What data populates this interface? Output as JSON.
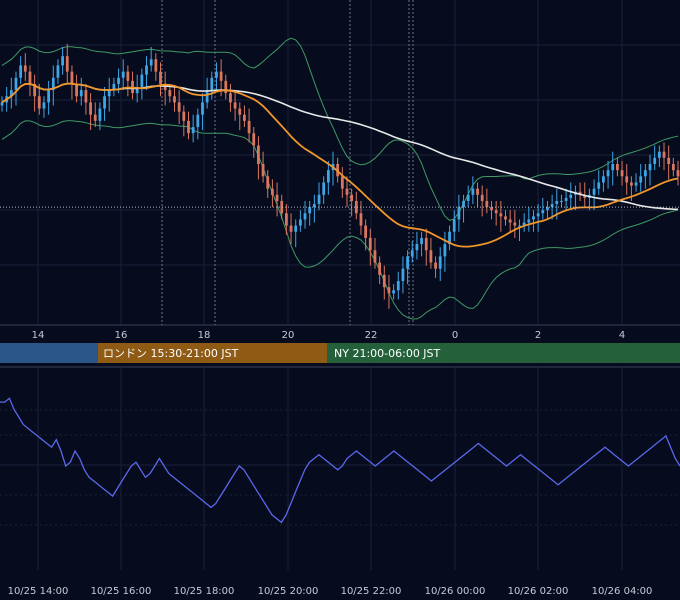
{
  "colors": {
    "background": "#060b1e",
    "grid": "#1a2039",
    "bull": "#3ea6e6",
    "bear": "#d9775e",
    "bb_band": "#3f9a63",
    "sma_orange": "#f0962a",
    "sma_white": "#e8e8e8",
    "oscillator": "#5a68ec",
    "axis_text": "#c8cbd6",
    "session_tokyo": "#2a5588",
    "session_london": "#8e5a14",
    "session_ny": "#24613a",
    "session_text": "#ffffff",
    "marker_line": "#8a8fa0"
  },
  "sessions": [
    {
      "key": "tokyo",
      "label": ""
    },
    {
      "key": "london",
      "label": "ロンドン 15:30-21:00 JST"
    },
    {
      "key": "ny",
      "label": "NY 21:00-06:00 JST"
    }
  ],
  "chart_data": {
    "type": "line",
    "main_panel": {
      "indicators": [
        "candles",
        "bollinger_bands",
        "sma_orange",
        "sma_white",
        "dotted_reference_line"
      ],
      "x_tick_labels": [
        "14",
        "16",
        "18",
        "20",
        "22",
        "0",
        "2",
        "4"
      ],
      "ylim": [
        0,
        100
      ],
      "reference_level": 36,
      "close_series": [
        70,
        72,
        74,
        78,
        82,
        80,
        76,
        72,
        68,
        70,
        74,
        78,
        82,
        85,
        80,
        76,
        72,
        74,
        70,
        66,
        64,
        68,
        72,
        74,
        76,
        78,
        80,
        77,
        73,
        75,
        79,
        82,
        84,
        80,
        76,
        74,
        72,
        70,
        67,
        64,
        60,
        62,
        66,
        70,
        74,
        78,
        80,
        77,
        73,
        70,
        68,
        66,
        64,
        60,
        56,
        50,
        46,
        42,
        40,
        38,
        34,
        30,
        28,
        30,
        32,
        34,
        36,
        37,
        40,
        44,
        48,
        50,
        46,
        42,
        40,
        38,
        34,
        30,
        26,
        22,
        18,
        14,
        10,
        8,
        9,
        12,
        16,
        20,
        22,
        24,
        26,
        22,
        18,
        16,
        20,
        24,
        28,
        32,
        36,
        38,
        40,
        42,
        40,
        38,
        36,
        35,
        34,
        33,
        32,
        31,
        30,
        30,
        31,
        32,
        33,
        34,
        35,
        36,
        37,
        38,
        38,
        39,
        40,
        41,
        40,
        39,
        40,
        42,
        44,
        46,
        48,
        50,
        48,
        46,
        44,
        43,
        44,
        46,
        48,
        50,
        52,
        54,
        52,
        50,
        48,
        46
      ]
    },
    "oscillator_panel": {
      "x_tick_labels": [
        "10/25 14:00",
        "10/25 16:00",
        "10/25 18:00",
        "10/25 20:00",
        "10/25 22:00",
        "10/26 00:00",
        "10/26 02:00",
        "10/26 04:00"
      ],
      "ylim": [
        0,
        100
      ],
      "values": [
        84,
        84,
        86,
        80,
        76,
        72,
        70,
        68,
        66,
        64,
        62,
        60,
        64,
        58,
        50,
        52,
        58,
        54,
        48,
        44,
        42,
        40,
        38,
        36,
        34,
        38,
        42,
        46,
        50,
        52,
        48,
        44,
        46,
        50,
        54,
        50,
        46,
        44,
        42,
        40,
        38,
        36,
        34,
        32,
        30,
        28,
        30,
        34,
        38,
        42,
        46,
        50,
        48,
        44,
        40,
        36,
        32,
        28,
        24,
        22,
        20,
        24,
        30,
        36,
        42,
        48,
        52,
        54,
        56,
        54,
        52,
        50,
        48,
        50,
        54,
        56,
        58,
        56,
        54,
        52,
        50,
        52,
        54,
        56,
        58,
        56,
        54,
        52,
        50,
        48,
        46,
        44,
        42,
        44,
        46,
        48,
        50,
        52,
        54,
        56,
        58,
        60,
        62,
        60,
        58,
        56,
        54,
        52,
        50,
        52,
        54,
        56,
        54,
        52,
        50,
        48,
        46,
        44,
        42,
        40,
        42,
        44,
        46,
        48,
        50,
        52,
        54,
        56,
        58,
        60,
        58,
        56,
        54,
        52,
        50,
        52,
        54,
        56,
        58,
        60,
        62,
        64,
        66,
        60,
        54,
        50
      ]
    }
  }
}
